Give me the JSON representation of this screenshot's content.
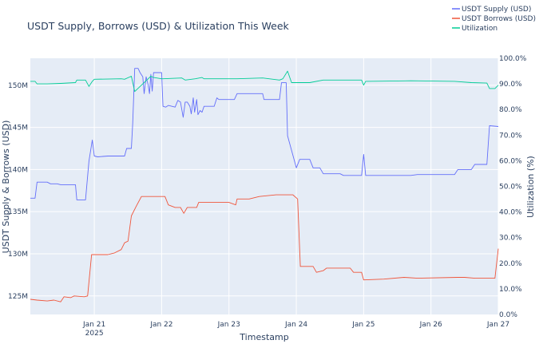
{
  "chart_data": {
    "type": "line",
    "title": "USDT Supply, Borrows (USD) & Utilization This Week",
    "xlabel": "Timestamp",
    "ylabel_left": "USDT Supply & Borrows (USD)",
    "ylabel_right": "Utilization (%)",
    "x_ticks": [
      {
        "day": 21,
        "label": "Jan 21",
        "sub": "2025"
      },
      {
        "day": 22,
        "label": "Jan 22",
        "sub": ""
      },
      {
        "day": 23,
        "label": "Jan 23",
        "sub": ""
      },
      {
        "day": 24,
        "label": "Jan 24",
        "sub": ""
      },
      {
        "day": 25,
        "label": "Jan 25",
        "sub": ""
      },
      {
        "day": 26,
        "label": "Jan 26",
        "sub": ""
      },
      {
        "day": 27,
        "label": "Jan 27",
        "sub": ""
      }
    ],
    "xlim": [
      20.05,
      27.0
    ],
    "y_left_ticks": [
      {
        "value": 125,
        "label": "125M"
      },
      {
        "value": 130,
        "label": "130M"
      },
      {
        "value": 135,
        "label": "135M"
      },
      {
        "value": 140,
        "label": "140M"
      },
      {
        "value": 145,
        "label": "145M"
      },
      {
        "value": 150,
        "label": "150M"
      }
    ],
    "ylim_left": [
      122.8,
      153.2
    ],
    "y_right_ticks": [
      {
        "value": 0,
        "label": "0.0%"
      },
      {
        "value": 10,
        "label": "10.0%"
      },
      {
        "value": 20,
        "label": "20.0%"
      },
      {
        "value": 30,
        "label": "30.0%"
      },
      {
        "value": 40,
        "label": "40.0%"
      },
      {
        "value": 50,
        "label": "50.0%"
      },
      {
        "value": 60,
        "label": "60.0%"
      },
      {
        "value": 70,
        "label": "70.0%"
      },
      {
        "value": 80,
        "label": "80.0%"
      },
      {
        "value": 90,
        "label": "90.0%"
      },
      {
        "value": 100,
        "label": "100.0%"
      }
    ],
    "ylim_right": [
      0,
      100
    ],
    "grid": true,
    "legend_position": "top-right",
    "series": [
      {
        "name": "USDT Supply (USD)",
        "color": "#636efa",
        "axis": "left",
        "points": [
          [
            20.05,
            136.6
          ],
          [
            20.12,
            136.6
          ],
          [
            20.15,
            138.5
          ],
          [
            20.3,
            138.5
          ],
          [
            20.35,
            138.3
          ],
          [
            20.45,
            138.3
          ],
          [
            20.5,
            138.2
          ],
          [
            20.72,
            138.2
          ],
          [
            20.74,
            136.4
          ],
          [
            20.87,
            136.4
          ],
          [
            20.92,
            141.0
          ],
          [
            20.97,
            143.5
          ],
          [
            21.0,
            141.6
          ],
          [
            21.05,
            141.5
          ],
          [
            21.2,
            141.6
          ],
          [
            21.4,
            141.6
          ],
          [
            21.45,
            141.6
          ],
          [
            21.48,
            142.5
          ],
          [
            21.55,
            142.5
          ],
          [
            21.57,
            145.5
          ],
          [
            21.6,
            152.0
          ],
          [
            21.65,
            152.0
          ],
          [
            21.68,
            151.5
          ],
          [
            21.72,
            151.0
          ],
          [
            21.74,
            149.0
          ],
          [
            21.77,
            151.0
          ],
          [
            21.8,
            150.0
          ],
          [
            21.82,
            149.0
          ],
          [
            21.84,
            151.3
          ],
          [
            21.86,
            149.3
          ],
          [
            21.88,
            151.5
          ],
          [
            22.0,
            151.5
          ],
          [
            22.02,
            147.5
          ],
          [
            22.06,
            147.4
          ],
          [
            22.1,
            147.6
          ],
          [
            22.2,
            147.4
          ],
          [
            22.24,
            148.2
          ],
          [
            22.28,
            148.0
          ],
          [
            22.32,
            146.2
          ],
          [
            22.35,
            148.0
          ],
          [
            22.38,
            148.0
          ],
          [
            22.42,
            147.5
          ],
          [
            22.44,
            146.6
          ],
          [
            22.47,
            148.5
          ],
          [
            22.49,
            146.8
          ],
          [
            22.52,
            148.3
          ],
          [
            22.54,
            146.5
          ],
          [
            22.57,
            147.0
          ],
          [
            22.6,
            146.8
          ],
          [
            22.63,
            147.5
          ],
          [
            22.78,
            147.5
          ],
          [
            22.82,
            148.5
          ],
          [
            22.85,
            148.3
          ],
          [
            23.08,
            148.3
          ],
          [
            23.12,
            149.0
          ],
          [
            23.5,
            149.0
          ],
          [
            23.52,
            148.3
          ],
          [
            23.75,
            148.3
          ],
          [
            23.78,
            150.3
          ],
          [
            23.85,
            150.3
          ],
          [
            23.87,
            144.0
          ],
          [
            24.0,
            140.2
          ],
          [
            24.05,
            141.2
          ],
          [
            24.2,
            141.2
          ],
          [
            24.25,
            140.2
          ],
          [
            24.35,
            140.2
          ],
          [
            24.4,
            139.5
          ],
          [
            24.65,
            139.5
          ],
          [
            24.7,
            139.3
          ],
          [
            24.97,
            139.3
          ],
          [
            25.0,
            141.8
          ],
          [
            25.03,
            139.3
          ],
          [
            25.3,
            139.3
          ],
          [
            25.7,
            139.3
          ],
          [
            25.8,
            139.4
          ],
          [
            26.35,
            139.4
          ],
          [
            26.4,
            140.0
          ],
          [
            26.6,
            140.0
          ],
          [
            26.65,
            140.6
          ],
          [
            26.83,
            140.6
          ],
          [
            26.87,
            145.2
          ],
          [
            27.0,
            145.1
          ]
        ]
      },
      {
        "name": "USDT Borrows (USD)",
        "color": "#ef553b",
        "axis": "left",
        "points": [
          [
            20.05,
            124.6
          ],
          [
            20.15,
            124.5
          ],
          [
            20.3,
            124.4
          ],
          [
            20.4,
            124.5
          ],
          [
            20.5,
            124.3
          ],
          [
            20.55,
            124.9
          ],
          [
            20.65,
            124.8
          ],
          [
            20.7,
            125.0
          ],
          [
            20.85,
            124.9
          ],
          [
            20.9,
            125.0
          ],
          [
            20.96,
            129.9
          ],
          [
            21.2,
            129.9
          ],
          [
            21.3,
            130.1
          ],
          [
            21.4,
            130.5
          ],
          [
            21.45,
            131.3
          ],
          [
            21.5,
            131.5
          ],
          [
            21.55,
            134.5
          ],
          [
            21.62,
            135.6
          ],
          [
            21.7,
            136.8
          ],
          [
            22.05,
            136.8
          ],
          [
            22.1,
            135.8
          ],
          [
            22.2,
            135.5
          ],
          [
            22.28,
            135.5
          ],
          [
            22.33,
            134.8
          ],
          [
            22.38,
            135.5
          ],
          [
            22.52,
            135.5
          ],
          [
            22.55,
            136.1
          ],
          [
            22.65,
            136.1
          ],
          [
            22.75,
            136.1
          ],
          [
            23.0,
            136.1
          ],
          [
            23.1,
            135.8
          ],
          [
            23.12,
            136.5
          ],
          [
            23.3,
            136.5
          ],
          [
            23.45,
            136.8
          ],
          [
            23.7,
            137.0
          ],
          [
            23.95,
            137.0
          ],
          [
            24.02,
            136.5
          ],
          [
            24.06,
            128.5
          ],
          [
            24.25,
            128.5
          ],
          [
            24.3,
            127.8
          ],
          [
            24.4,
            128.0
          ],
          [
            24.45,
            128.3
          ],
          [
            24.8,
            128.3
          ],
          [
            24.85,
            127.8
          ],
          [
            24.97,
            127.8
          ],
          [
            25.0,
            126.9
          ],
          [
            25.3,
            127.0
          ],
          [
            25.6,
            127.2
          ],
          [
            25.8,
            127.1
          ],
          [
            26.4,
            127.2
          ],
          [
            26.5,
            127.2
          ],
          [
            26.65,
            127.1
          ],
          [
            26.95,
            127.1
          ],
          [
            27.0,
            130.6
          ]
        ]
      },
      {
        "name": "Utilization",
        "color": "#00cc96",
        "axis": "right",
        "points": [
          [
            20.05,
            91.0
          ],
          [
            20.12,
            91.0
          ],
          [
            20.15,
            90.0
          ],
          [
            20.3,
            90.0
          ],
          [
            20.5,
            90.2
          ],
          [
            20.72,
            90.5
          ],
          [
            20.74,
            91.5
          ],
          [
            20.87,
            91.5
          ],
          [
            20.92,
            89.0
          ],
          [
            20.97,
            91.0
          ],
          [
            21.0,
            91.8
          ],
          [
            21.4,
            92.0
          ],
          [
            21.45,
            91.8
          ],
          [
            21.55,
            93.0
          ],
          [
            21.6,
            87.0
          ],
          [
            21.68,
            89.0
          ],
          [
            21.72,
            90.0
          ],
          [
            21.8,
            92.0
          ],
          [
            21.84,
            93.0
          ],
          [
            21.88,
            92.5
          ],
          [
            22.0,
            92.0
          ],
          [
            22.02,
            92.0
          ],
          [
            22.3,
            92.3
          ],
          [
            22.35,
            91.5
          ],
          [
            22.42,
            91.7
          ],
          [
            22.5,
            92.0
          ],
          [
            22.6,
            92.5
          ],
          [
            22.63,
            92.0
          ],
          [
            22.85,
            92.0
          ],
          [
            23.12,
            92.0
          ],
          [
            23.5,
            92.3
          ],
          [
            23.75,
            91.5
          ],
          [
            23.8,
            92.0
          ],
          [
            23.87,
            95.0
          ],
          [
            23.93,
            90.5
          ],
          [
            24.2,
            90.5
          ],
          [
            24.4,
            91.5
          ],
          [
            24.97,
            91.5
          ],
          [
            25.0,
            89.5
          ],
          [
            25.03,
            91.0
          ],
          [
            25.7,
            91.2
          ],
          [
            26.35,
            91.0
          ],
          [
            26.6,
            90.5
          ],
          [
            26.83,
            90.3
          ],
          [
            26.87,
            88.2
          ],
          [
            26.95,
            88.2
          ],
          [
            27.0,
            89.5
          ]
        ]
      }
    ]
  }
}
